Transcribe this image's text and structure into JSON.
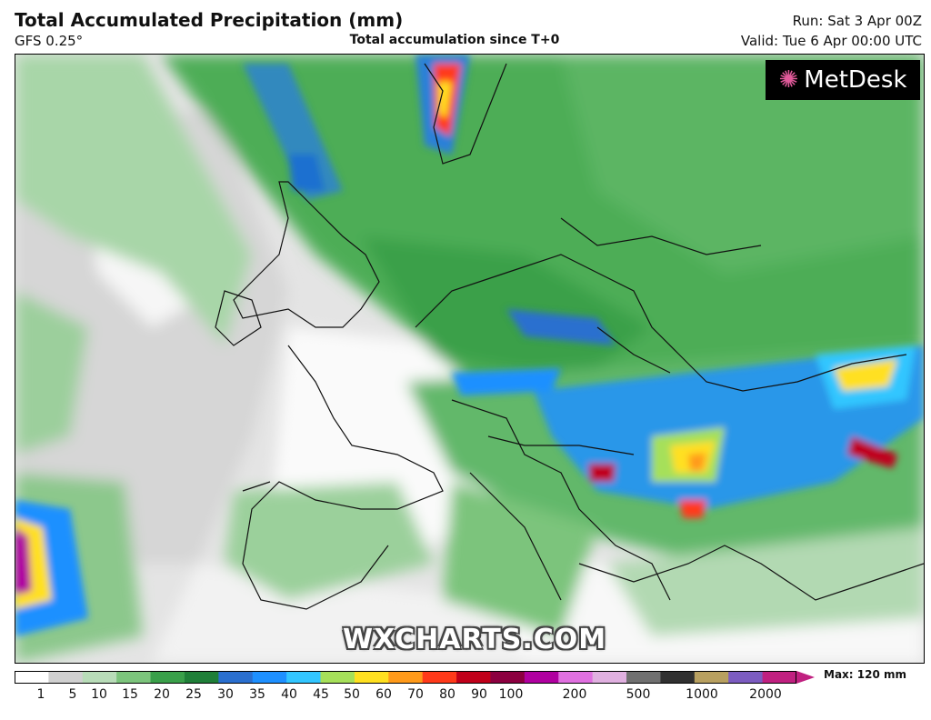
{
  "header": {
    "title": "Total Accumulated Precipitation (mm)",
    "model": "GFS 0.25°",
    "subtitle": "Total accumulation since T+0",
    "run": "Run: Sat 3 Apr 00Z",
    "valid": "Valid: Tue 6 Apr 00:00 UTC"
  },
  "map": {
    "logo_text": "MetDesk",
    "logo_icon": "starburst-icon",
    "watermark": "WXCHARTS.COM"
  },
  "colorbar": {
    "ticks": [
      "1",
      "5",
      "10",
      "15",
      "20",
      "25",
      "30",
      "35",
      "40",
      "45",
      "50",
      "60",
      "70",
      "80",
      "90",
      "100",
      "200",
      "500",
      "1000",
      "2000"
    ],
    "max_label": "Max: 120 mm",
    "colors": [
      "#ffffff",
      "#d0d0d0",
      "#b8dcb8",
      "#7cc47c",
      "#3aa04a",
      "#1f7f38",
      "#2a6fcf",
      "#1e90ff",
      "#33c6ff",
      "#a6e05a",
      "#ffe020",
      "#ff9a1a",
      "#ff3a1a",
      "#c0001a",
      "#8c0040",
      "#b000a0",
      "#e070e0",
      "#e0b0e0",
      "#707070",
      "#303030",
      "#b8a060",
      "#7c5cc0",
      "#c02080"
    ]
  }
}
